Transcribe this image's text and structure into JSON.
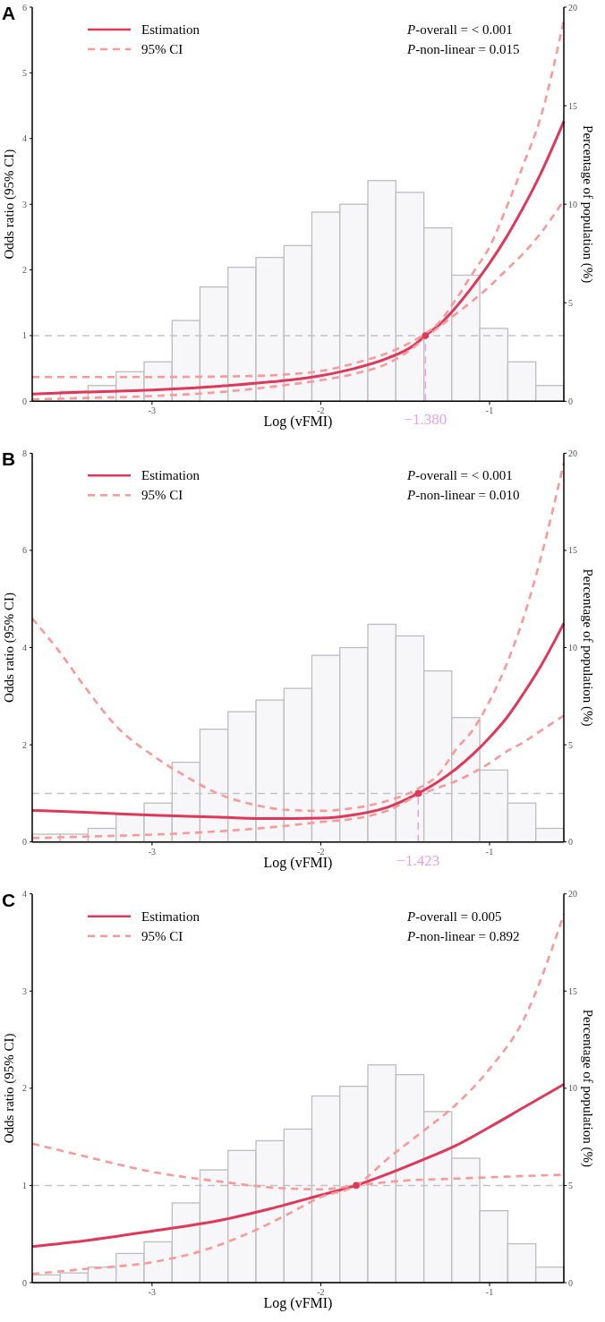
{
  "chart_data": [
    {
      "type": "line",
      "title": "A",
      "xlabel": "Log (vFMI)",
      "ylabel": "Odds ratio (95% CI)",
      "y2label": "Percentage of population (%)",
      "xlim": [
        -3.71,
        -0.56
      ],
      "xticks": [
        -3,
        -2,
        -1
      ],
      "ylim": [
        0,
        6
      ],
      "yticks": [
        0,
        1,
        2,
        3,
        4,
        5,
        6
      ],
      "y2lim": [
        0,
        20
      ],
      "y2ticks": [
        0,
        5,
        10,
        15,
        20
      ],
      "legend": "top left",
      "annotations": [
        "P-overall = < 0.001",
        "P-non-linear = 0.015"
      ],
      "ref_lines": [
        {
          "axis": "y",
          "value": 1,
          "color": "#c4c4c4",
          "line_style": "dashed"
        },
        {
          "axis": "x",
          "value": -1.38,
          "label": "−1.380",
          "color": "#e9a0e2",
          "line_style": "dashed"
        }
      ],
      "series": [
        {
          "type": "histogram",
          "axis": "y2",
          "color": "#f7f6f8",
          "bins": [
            -3.71,
            -3.544,
            -3.379,
            -3.213,
            -3.047,
            -2.881,
            -2.716,
            -2.55,
            -2.384,
            -2.218,
            -2.053,
            -1.887,
            -1.721,
            -1.555,
            -1.389,
            -1.224,
            -1.058,
            -0.892,
            -0.726,
            -0.56
          ],
          "values": [
            null,
            0.5,
            0.8,
            1.5,
            2.0,
            4.1,
            5.8,
            6.8,
            7.3,
            7.9,
            9.6,
            10.0,
            11.2,
            10.6,
            8.8,
            6.4,
            3.7,
            2.0,
            0.8
          ]
        },
        {
          "name": "Estimation",
          "color": "#e0385a",
          "line_style": "solid",
          "x": [
            -3.71,
            -3.4,
            -3.0,
            -2.6,
            -2.2,
            -2.0,
            -1.8,
            -1.6,
            -1.45,
            -1.38,
            -1.3,
            -1.2,
            -1.1,
            -1.0,
            -0.9,
            -0.8,
            -0.7,
            -0.56
          ],
          "values": [
            0.11,
            0.14,
            0.17,
            0.23,
            0.32,
            0.39,
            0.5,
            0.66,
            0.85,
            1.0,
            1.16,
            1.43,
            1.75,
            2.1,
            2.5,
            2.95,
            3.45,
            4.26
          ]
        },
        {
          "name": "95% CI",
          "color": "#f99a9a",
          "line_style": "dashed",
          "x": [
            -3.71,
            -3.0,
            -2.5,
            -2.2,
            -2.0,
            -1.8,
            -1.6,
            -1.45,
            -1.38,
            -1.3,
            -1.2,
            -1.1,
            -1.0,
            -0.9,
            -0.8,
            -0.7,
            -0.56
          ],
          "values": [
            0.37,
            0.37,
            0.38,
            0.41,
            0.46,
            0.58,
            0.74,
            0.92,
            1.03,
            1.2,
            1.55,
            1.95,
            2.35,
            2.95,
            3.6,
            4.3,
            5.8
          ]
        },
        {
          "color": "#f99a9a",
          "line_style": "dashed",
          "x": [
            -3.71,
            -3.4,
            -3.0,
            -2.6,
            -2.2,
            -2.0,
            -1.8,
            -1.6,
            -1.45,
            -1.38,
            -1.3,
            -1.2,
            -1.1,
            -1.0,
            -0.9,
            -0.8,
            -0.7,
            -0.56
          ],
          "values": [
            0.03,
            0.05,
            0.08,
            0.14,
            0.25,
            0.32,
            0.42,
            0.58,
            0.82,
            0.97,
            1.13,
            1.33,
            1.53,
            1.75,
            2.0,
            2.25,
            2.55,
            3.06
          ]
        },
        {
          "type": "scatter",
          "marker": "circle",
          "color": "#e0385a",
          "x": [
            -1.38
          ],
          "values": [
            1
          ]
        }
      ]
    },
    {
      "type": "line",
      "title": "B",
      "xlabel": "Log (vFMI)",
      "ylabel": "Odds ratio (95% CI)",
      "y2label": "Percentage of population (%)",
      "xlim": [
        -3.71,
        -0.56
      ],
      "xticks": [
        -3,
        -2,
        -1
      ],
      "ylim": [
        0,
        8
      ],
      "yticks": [
        0,
        2,
        4,
        6,
        8
      ],
      "y2lim": [
        0,
        20
      ],
      "y2ticks": [
        0,
        5,
        10,
        15,
        20
      ],
      "legend": "top left",
      "annotations": [
        "P-overall = < 0.001",
        "P-non-linear = 0.010"
      ],
      "ref_lines": [
        {
          "axis": "y",
          "value": 1,
          "color": "#c4c4c4",
          "line_style": "dashed"
        },
        {
          "axis": "x",
          "value": -1.423,
          "label": "−1.423",
          "color": "#e9a0e2",
          "line_style": "dashed"
        }
      ],
      "series": [
        {
          "type": "histogram",
          "axis": "y2",
          "color": "#f7f6f8",
          "bins": [
            -3.71,
            -3.544,
            -3.379,
            -3.213,
            -3.047,
            -2.881,
            -2.716,
            -2.55,
            -2.384,
            -2.218,
            -2.053,
            -1.887,
            -1.721,
            -1.555,
            -1.389,
            -1.224,
            -1.058,
            -0.892,
            -0.726,
            -0.56
          ],
          "values": [
            0.4,
            0.4,
            0.7,
            1.4,
            2.0,
            4.1,
            5.8,
            6.7,
            7.3,
            7.9,
            9.6,
            10.0,
            11.2,
            10.6,
            8.8,
            6.4,
            3.7,
            2.0,
            0.7
          ]
        },
        {
          "name": "Estimation",
          "color": "#e0385a",
          "line_style": "solid",
          "x": [
            -3.71,
            -3.4,
            -3.0,
            -2.6,
            -2.3,
            -2.0,
            -1.8,
            -1.6,
            -1.423,
            -1.3,
            -1.2,
            -1.1,
            -1.0,
            -0.9,
            -0.8,
            -0.7,
            -0.56
          ],
          "values": [
            0.65,
            0.61,
            0.55,
            0.51,
            0.48,
            0.49,
            0.56,
            0.72,
            1.0,
            1.25,
            1.5,
            1.8,
            2.15,
            2.55,
            3.05,
            3.6,
            4.5
          ]
        },
        {
          "name": "95% CI",
          "color": "#f99a9a",
          "line_style": "dashed",
          "x": [
            -3.71,
            -3.55,
            -3.4,
            -3.2,
            -3.0,
            -2.8,
            -2.6,
            -2.4,
            -2.2,
            -2.0,
            -1.8,
            -1.6,
            -1.423,
            -1.3,
            -1.2,
            -1.1,
            -1.0,
            -0.9,
            -0.8,
            -0.7,
            -0.56
          ],
          "values": [
            4.6,
            3.92,
            3.2,
            2.34,
            1.79,
            1.35,
            0.98,
            0.77,
            0.66,
            0.64,
            0.7,
            0.85,
            1.1,
            1.4,
            1.9,
            2.3,
            2.9,
            3.65,
            4.6,
            5.8,
            7.8
          ]
        },
        {
          "color": "#f99a9a",
          "line_style": "dashed",
          "x": [
            -3.71,
            -3.4,
            -3.0,
            -2.6,
            -2.3,
            -2.0,
            -1.8,
            -1.6,
            -1.423,
            -1.3,
            -1.2,
            -1.1,
            -1.0,
            -0.9,
            -0.8,
            -0.7,
            -0.56
          ],
          "values": [
            0.08,
            0.11,
            0.15,
            0.22,
            0.3,
            0.41,
            0.48,
            0.65,
            0.96,
            1.12,
            1.25,
            1.42,
            1.62,
            1.86,
            2.05,
            2.28,
            2.6
          ]
        },
        {
          "type": "scatter",
          "marker": "circle",
          "color": "#e0385a",
          "x": [
            -1.423
          ],
          "values": [
            1
          ]
        }
      ]
    },
    {
      "type": "line",
      "title": "C",
      "xlabel": "Log (vFMI)",
      "ylabel": "Odds ratio (95% CI)",
      "y2label": "Percentage of population (%)",
      "xlim": [
        -3.71,
        -0.56
      ],
      "xticks": [
        -3,
        -2,
        -1
      ],
      "ylim": [
        0,
        4
      ],
      "yticks": [
        0,
        1,
        2,
        3,
        4
      ],
      "y2lim": [
        0,
        20
      ],
      "y2ticks": [
        0,
        5,
        10,
        15,
        20
      ],
      "legend": "top left",
      "annotations": [
        "P-overall = 0.005",
        "P-non-linear = 0.892"
      ],
      "ref_lines": [
        {
          "axis": "y",
          "value": 1,
          "color": "#c4c4c4",
          "line_style": "dashed"
        }
      ],
      "series": [
        {
          "type": "histogram",
          "axis": "y2",
          "color": "#f7f6f8",
          "bins": [
            -3.71,
            -3.544,
            -3.379,
            -3.213,
            -3.047,
            -2.881,
            -2.716,
            -2.55,
            -2.384,
            -2.218,
            -2.053,
            -1.887,
            -1.721,
            -1.555,
            -1.389,
            -1.224,
            -1.058,
            -0.892,
            -0.726,
            -0.56
          ],
          "values": [
            0.4,
            0.5,
            0.8,
            1.5,
            2.1,
            4.1,
            5.8,
            6.8,
            7.3,
            7.9,
            9.6,
            10.1,
            11.2,
            10.7,
            8.8,
            6.4,
            3.7,
            2.0,
            0.8
          ]
        },
        {
          "name": "Estimation",
          "color": "#e0385a",
          "line_style": "solid",
          "x": [
            -3.71,
            -3.4,
            -3.0,
            -2.6,
            -2.3,
            -2.0,
            -1.79,
            -1.6,
            -1.4,
            -1.2,
            -1.0,
            -0.8,
            -0.56
          ],
          "values": [
            0.37,
            0.43,
            0.53,
            0.64,
            0.76,
            0.9,
            1.0,
            1.12,
            1.26,
            1.41,
            1.6,
            1.8,
            2.04
          ]
        },
        {
          "name": "95% CI",
          "color": "#f99a9a",
          "line_style": "dashed",
          "x": [
            -3.71,
            -3.4,
            -3.0,
            -2.6,
            -2.3,
            -2.0,
            -1.79,
            -1.5,
            -1.2,
            -0.9,
            -0.56
          ],
          "values": [
            1.43,
            1.3,
            1.14,
            1.04,
            0.98,
            0.96,
            1.0,
            1.05,
            1.07,
            1.09,
            1.11
          ]
        },
        {
          "color": "#f99a9a",
          "line_style": "dashed",
          "x": [
            -3.71,
            -3.4,
            -3.0,
            -2.7,
            -2.4,
            -2.2,
            -2.0,
            -1.79,
            -1.6,
            -1.4,
            -1.2,
            -1.0,
            -0.8,
            -0.56
          ],
          "values": [
            0.09,
            0.14,
            0.21,
            0.33,
            0.53,
            0.7,
            0.88,
            1.0,
            1.28,
            1.55,
            1.83,
            2.2,
            2.7,
            3.79
          ]
        },
        {
          "type": "scatter",
          "marker": "circle",
          "color": "#e0385a",
          "x": [
            -1.79
          ],
          "values": [
            1
          ]
        }
      ]
    }
  ]
}
